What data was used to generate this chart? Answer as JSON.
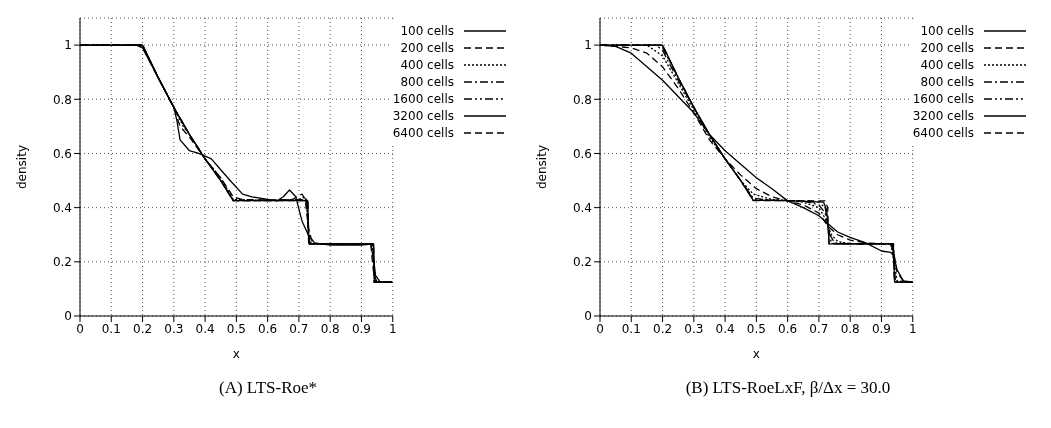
{
  "chart_data": [
    {
      "type": "line",
      "title": "(A) LTS-Roe*",
      "xlabel": "x",
      "ylabel": "density",
      "xlim": [
        0,
        1
      ],
      "xticks": [
        0,
        0.1,
        0.2,
        0.3,
        0.4,
        0.5,
        0.6,
        0.7,
        0.8,
        0.9,
        1
      ],
      "ylim": [
        0,
        1.1
      ],
      "yticks": [
        0,
        0.2,
        0.4,
        0.6,
        0.8,
        1
      ],
      "grid": true,
      "legend": "top right",
      "series": [
        {
          "name": "100 cells",
          "color": "#000000",
          "line_style": "solid",
          "x": [
            0,
            0.18,
            0.2,
            0.25,
            0.3,
            0.31,
            0.32,
            0.35,
            0.38,
            0.42,
            0.45,
            0.48,
            0.52,
            0.55,
            0.6,
            0.63,
            0.65,
            0.67,
            0.69,
            0.71,
            0.73,
            0.75,
            0.8,
            0.9,
            0.93,
            0.94,
            0.945,
            0.96,
            1
          ],
          "values": [
            1,
            1,
            0.99,
            0.88,
            0.77,
            0.72,
            0.65,
            0.61,
            0.6,
            0.58,
            0.54,
            0.5,
            0.45,
            0.44,
            0.43,
            0.425,
            0.44,
            0.465,
            0.44,
            0.35,
            0.3,
            0.27,
            0.262,
            0.262,
            0.265,
            0.2,
            0.15,
            0.125,
            0.125
          ]
        },
        {
          "name": "200 cells",
          "color": "#000000",
          "line_style": "dashed",
          "x": [
            0,
            0.19,
            0.2,
            0.25,
            0.3,
            0.32,
            0.35,
            0.4,
            0.45,
            0.49,
            0.52,
            0.6,
            0.68,
            0.7,
            0.71,
            0.72,
            0.73,
            0.74,
            0.76,
            0.8,
            0.93,
            0.935,
            0.94,
            0.95,
            1
          ],
          "values": [
            1,
            1,
            0.99,
            0.88,
            0.77,
            0.7,
            0.66,
            0.58,
            0.51,
            0.44,
            0.43,
            0.428,
            0.43,
            0.445,
            0.45,
            0.43,
            0.33,
            0.28,
            0.266,
            0.266,
            0.266,
            0.2,
            0.15,
            0.125,
            0.125
          ]
        },
        {
          "name": "400 cells",
          "color": "#000000",
          "line_style": "dotted",
          "x": [
            0,
            0.2,
            0.25,
            0.3,
            0.33,
            0.35,
            0.4,
            0.45,
            0.49,
            0.6,
            0.7,
            0.72,
            0.725,
            0.73,
            0.74,
            0.9,
            0.935,
            0.94,
            0.945,
            1
          ],
          "values": [
            1,
            1,
            0.88,
            0.77,
            0.7,
            0.67,
            0.58,
            0.51,
            0.43,
            0.427,
            0.43,
            0.44,
            0.42,
            0.3,
            0.266,
            0.266,
            0.266,
            0.18,
            0.125,
            0.125
          ]
        },
        {
          "name": "800 cells",
          "color": "#000000",
          "line_style": "dashdot",
          "x": [
            0,
            0.2,
            0.25,
            0.3,
            0.35,
            0.4,
            0.45,
            0.49,
            0.6,
            0.72,
            0.727,
            0.73,
            0.735,
            0.9,
            0.937,
            0.94,
            0.943,
            1
          ],
          "values": [
            1,
            1,
            0.88,
            0.77,
            0.67,
            0.58,
            0.5,
            0.427,
            0.427,
            0.43,
            0.4,
            0.3,
            0.266,
            0.266,
            0.266,
            0.18,
            0.125,
            0.125
          ]
        },
        {
          "name": "1600 cells",
          "color": "#000000",
          "line_style": "dashdotdot",
          "x": [
            0,
            0.2,
            0.25,
            0.3,
            0.35,
            0.4,
            0.45,
            0.49,
            0.6,
            0.725,
            0.73,
            0.733,
            0.9,
            0.938,
            0.94,
            0.942,
            1
          ],
          "values": [
            1,
            1,
            0.88,
            0.77,
            0.67,
            0.58,
            0.5,
            0.426,
            0.426,
            0.428,
            0.35,
            0.266,
            0.266,
            0.266,
            0.18,
            0.125,
            0.125
          ]
        },
        {
          "name": "3200 cells",
          "color": "#000000",
          "line_style": "solid",
          "x": [
            0,
            0.2,
            0.25,
            0.3,
            0.35,
            0.4,
            0.45,
            0.49,
            0.6,
            0.728,
            0.732,
            0.9,
            0.939,
            0.941,
            1
          ],
          "values": [
            1,
            1,
            0.88,
            0.77,
            0.67,
            0.58,
            0.5,
            0.426,
            0.426,
            0.427,
            0.266,
            0.266,
            0.266,
            0.125,
            0.125
          ]
        },
        {
          "name": "6400 cells",
          "color": "#000000",
          "line_style": "dashed",
          "x": [
            0,
            0.2,
            0.25,
            0.3,
            0.35,
            0.4,
            0.45,
            0.49,
            0.6,
            0.729,
            0.731,
            0.9,
            0.939,
            0.94,
            1
          ],
          "values": [
            1,
            1,
            0.88,
            0.77,
            0.67,
            0.58,
            0.5,
            0.426,
            0.426,
            0.426,
            0.266,
            0.266,
            0.266,
            0.125,
            0.125
          ]
        }
      ]
    },
    {
      "type": "line",
      "title": "(B) LTS-RoeLxF, β/Δx = 30.0",
      "xlabel": "x",
      "ylabel": "density",
      "xlim": [
        0,
        1
      ],
      "xticks": [
        0,
        0.1,
        0.2,
        0.3,
        0.4,
        0.5,
        0.6,
        0.7,
        0.8,
        0.9,
        1
      ],
      "ylim": [
        0,
        1.1
      ],
      "yticks": [
        0,
        0.2,
        0.4,
        0.6,
        0.8,
        1
      ],
      "grid": true,
      "legend": "top right",
      "series": [
        {
          "name": "100 cells",
          "color": "#000000",
          "line_style": "solid",
          "x": [
            0,
            0.05,
            0.1,
            0.15,
            0.2,
            0.25,
            0.3,
            0.35,
            0.4,
            0.45,
            0.5,
            0.55,
            0.6,
            0.65,
            0.7,
            0.73,
            0.76,
            0.8,
            0.85,
            0.9,
            0.93,
            0.94,
            0.95,
            0.97,
            1
          ],
          "values": [
            1,
            0.995,
            0.97,
            0.92,
            0.87,
            0.81,
            0.75,
            0.67,
            0.61,
            0.56,
            0.51,
            0.47,
            0.425,
            0.4,
            0.37,
            0.34,
            0.31,
            0.29,
            0.27,
            0.24,
            0.235,
            0.22,
            0.17,
            0.13,
            0.125
          ]
        },
        {
          "name": "200 cells",
          "color": "#000000",
          "line_style": "dashed",
          "x": [
            0,
            0.1,
            0.15,
            0.2,
            0.25,
            0.3,
            0.35,
            0.4,
            0.45,
            0.5,
            0.55,
            0.6,
            0.65,
            0.7,
            0.73,
            0.76,
            0.8,
            0.85,
            0.9,
            0.93,
            0.94,
            0.95,
            0.97,
            1
          ],
          "values": [
            1,
            0.99,
            0.97,
            0.92,
            0.84,
            0.75,
            0.65,
            0.58,
            0.52,
            0.47,
            0.44,
            0.425,
            0.41,
            0.38,
            0.33,
            0.3,
            0.28,
            0.27,
            0.266,
            0.265,
            0.23,
            0.16,
            0.13,
            0.125
          ]
        },
        {
          "name": "400 cells",
          "color": "#000000",
          "line_style": "dotted",
          "x": [
            0,
            0.15,
            0.2,
            0.25,
            0.3,
            0.35,
            0.4,
            0.45,
            0.49,
            0.55,
            0.6,
            0.65,
            0.7,
            0.72,
            0.74,
            0.76,
            0.8,
            0.93,
            0.94,
            0.95,
            1
          ],
          "values": [
            1,
            1,
            0.96,
            0.86,
            0.76,
            0.66,
            0.58,
            0.5,
            0.45,
            0.43,
            0.426,
            0.42,
            0.4,
            0.36,
            0.3,
            0.275,
            0.267,
            0.266,
            0.2,
            0.13,
            0.125
          ]
        },
        {
          "name": "800 cells",
          "color": "#000000",
          "line_style": "dashdot",
          "x": [
            0,
            0.18,
            0.2,
            0.25,
            0.3,
            0.35,
            0.4,
            0.45,
            0.49,
            0.55,
            0.65,
            0.7,
            0.72,
            0.735,
            0.75,
            0.8,
            0.935,
            0.94,
            0.945,
            1
          ],
          "values": [
            1,
            1,
            0.98,
            0.87,
            0.77,
            0.67,
            0.58,
            0.5,
            0.435,
            0.427,
            0.425,
            0.41,
            0.38,
            0.3,
            0.27,
            0.266,
            0.266,
            0.2,
            0.125,
            0.125
          ]
        },
        {
          "name": "1600 cells",
          "color": "#000000",
          "line_style": "dashdotdot",
          "x": [
            0,
            0.19,
            0.2,
            0.25,
            0.3,
            0.35,
            0.4,
            0.45,
            0.49,
            0.6,
            0.7,
            0.72,
            0.73,
            0.74,
            0.8,
            0.937,
            0.94,
            0.943,
            1
          ],
          "values": [
            1,
            1,
            0.99,
            0.88,
            0.77,
            0.67,
            0.58,
            0.5,
            0.43,
            0.426,
            0.42,
            0.4,
            0.33,
            0.268,
            0.266,
            0.266,
            0.18,
            0.125,
            0.125
          ]
        },
        {
          "name": "3200 cells",
          "color": "#000000",
          "line_style": "solid",
          "x": [
            0,
            0.2,
            0.25,
            0.3,
            0.35,
            0.4,
            0.45,
            0.49,
            0.6,
            0.715,
            0.725,
            0.733,
            0.9,
            0.938,
            0.942,
            1
          ],
          "values": [
            1,
            1,
            0.88,
            0.77,
            0.67,
            0.58,
            0.5,
            0.427,
            0.426,
            0.42,
            0.39,
            0.266,
            0.266,
            0.266,
            0.125,
            0.125
          ]
        },
        {
          "name": "6400 cells",
          "color": "#000000",
          "line_style": "dashed",
          "x": [
            0,
            0.2,
            0.25,
            0.3,
            0.35,
            0.4,
            0.45,
            0.49,
            0.6,
            0.72,
            0.728,
            0.732,
            0.9,
            0.939,
            0.941,
            1
          ],
          "values": [
            1,
            1,
            0.88,
            0.77,
            0.67,
            0.58,
            0.5,
            0.426,
            0.426,
            0.425,
            0.4,
            0.266,
            0.266,
            0.266,
            0.125,
            0.125
          ]
        }
      ]
    }
  ]
}
